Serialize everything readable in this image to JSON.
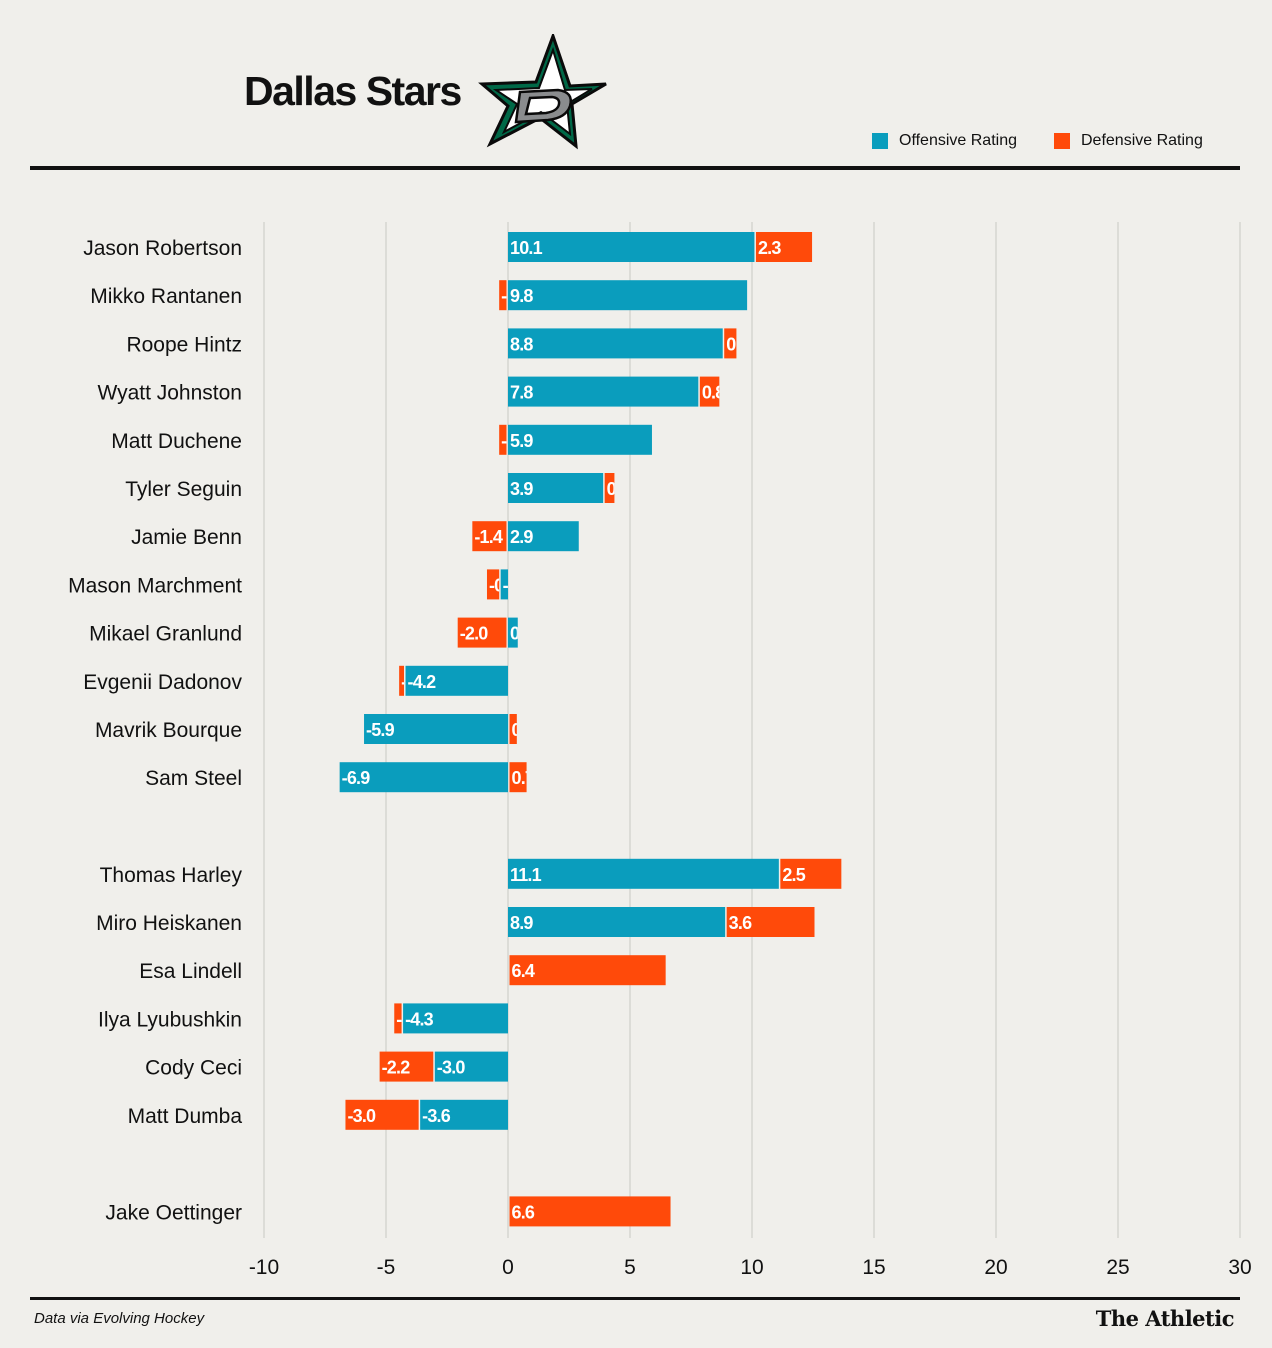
{
  "header": {
    "title": "Dallas Stars"
  },
  "legend": {
    "offensive_label": "Offensive Rating",
    "defensive_label": "Defensive Rating"
  },
  "colors": {
    "offensive": "#0a9dbd",
    "defensive": "#ff4a0a",
    "background": "#f0efeb",
    "grid": "#c9c8c3",
    "logo_green": "#006847"
  },
  "footer": {
    "source": "Data via Evolving Hockey",
    "brand": "The Athletic"
  },
  "chart_data": {
    "type": "bar",
    "orientation": "horizontal",
    "stacking": "stacked",
    "xlim": [
      -10,
      30
    ],
    "xticks": [
      -10,
      -5,
      0,
      5,
      10,
      15,
      20,
      25,
      30
    ],
    "grid": true,
    "legend_position": "top-right",
    "series": [
      {
        "name": "Offensive Rating",
        "key": "off"
      },
      {
        "name": "Defensive Rating",
        "key": "def"
      }
    ],
    "groups": [
      {
        "players": [
          {
            "name": "Jason Robertson",
            "off": 10.1,
            "def": 2.3
          },
          {
            "name": "Mikko Rantanen",
            "off": 9.8,
            "def": -0.3
          },
          {
            "name": "Roope Hintz",
            "off": 8.8,
            "def": 0.5
          },
          {
            "name": "Wyatt Johnston",
            "off": 7.8,
            "def": 0.8
          },
          {
            "name": "Matt Duchene",
            "off": 5.9,
            "def": -0.3
          },
          {
            "name": "Tyler Seguin",
            "off": 3.9,
            "def": 0.4
          },
          {
            "name": "Jamie Benn",
            "off": 2.9,
            "def": -1.4
          },
          {
            "name": "Mason Marchment",
            "off": -0.3,
            "def": -0.5
          },
          {
            "name": "Mikael Granlund",
            "off": 0.4,
            "def": -2.0
          },
          {
            "name": "Evgenii Dadonov",
            "off": -4.2,
            "def": -0.2
          },
          {
            "name": "Mavrik Bourque",
            "off": -5.9,
            "def": 0.3
          },
          {
            "name": "Sam Steel",
            "off": -6.9,
            "def": 0.7
          }
        ]
      },
      {
        "players": [
          {
            "name": "Thomas Harley",
            "off": 11.1,
            "def": 2.5
          },
          {
            "name": "Miro Heiskanen",
            "off": 8.9,
            "def": 3.6
          },
          {
            "name": "Esa Lindell",
            "off": 0.0,
            "def": 6.4
          },
          {
            "name": "Ilya Lyubushkin",
            "off": -4.3,
            "def": -0.3
          },
          {
            "name": "Cody Ceci",
            "off": -3.0,
            "def": -2.2
          },
          {
            "name": "Matt Dumba",
            "off": -3.6,
            "def": -3.0
          }
        ]
      },
      {
        "players": [
          {
            "name": "Jake Oettinger",
            "off": 0.0,
            "def": 6.6
          }
        ]
      }
    ]
  }
}
